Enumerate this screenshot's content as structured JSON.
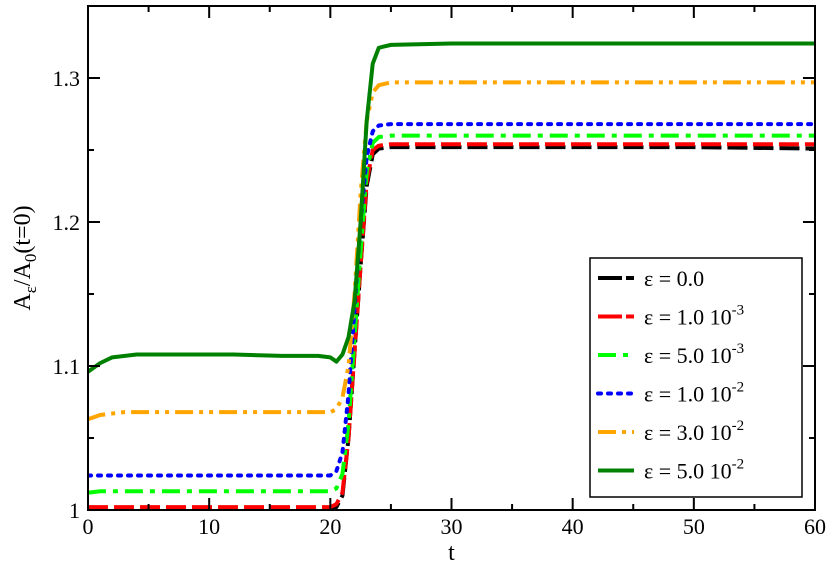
{
  "chart_data": {
    "type": "line",
    "title": "",
    "xlabel": "t",
    "ylabel_main": "A",
    "ylabel_sub": "ε",
    "ylabel_mid": "/A",
    "ylabel_sub2": "0",
    "ylabel_tail": "(t=0)",
    "xlim": [
      0,
      60
    ],
    "ylim": [
      1.0,
      1.35
    ],
    "xticks": [
      0,
      10,
      20,
      30,
      40,
      50,
      60
    ],
    "xtick_labels": [
      "0",
      "10",
      "20",
      "30",
      "40",
      "50",
      "60"
    ],
    "yticks": [
      1.0,
      1.1,
      1.2,
      1.3
    ],
    "ytick_labels": [
      "1",
      "1.1",
      "1.2",
      "1.3"
    ],
    "grid": false,
    "legend_position": "bottom-right",
    "series": [
      {
        "name": "ε = 0.0",
        "label_main": "ε = 0.0",
        "label_exp": "",
        "color": "#000000",
        "style": "dash",
        "points": [
          [
            0,
            1.0
          ],
          [
            5,
            1.0
          ],
          [
            10,
            1.0
          ],
          [
            15,
            1.0
          ],
          [
            19,
            1.0
          ],
          [
            20,
            1.0
          ],
          [
            20.5,
            1.002
          ],
          [
            21,
            1.01
          ],
          [
            21.5,
            1.05
          ],
          [
            22,
            1.11
          ],
          [
            22.5,
            1.17
          ],
          [
            23,
            1.225
          ],
          [
            23.5,
            1.247
          ],
          [
            24,
            1.251
          ],
          [
            25,
            1.252
          ],
          [
            30,
            1.252
          ],
          [
            40,
            1.252
          ],
          [
            50,
            1.252
          ],
          [
            60,
            1.251
          ]
        ]
      },
      {
        "name": "ε = 1.0 10-3",
        "label_main": "ε = 1.0 10",
        "label_exp": "-3",
        "color": "#ff0000",
        "style": "dash",
        "points": [
          [
            0,
            1.002
          ],
          [
            5,
            1.002
          ],
          [
            10,
            1.002
          ],
          [
            15,
            1.002
          ],
          [
            19,
            1.002
          ],
          [
            20,
            1.002
          ],
          [
            20.5,
            1.004
          ],
          [
            21,
            1.012
          ],
          [
            21.5,
            1.05
          ],
          [
            22,
            1.11
          ],
          [
            22.5,
            1.17
          ],
          [
            23,
            1.228
          ],
          [
            23.5,
            1.25
          ],
          [
            24,
            1.253
          ],
          [
            25,
            1.254
          ],
          [
            30,
            1.254
          ],
          [
            40,
            1.254
          ],
          [
            50,
            1.254
          ],
          [
            60,
            1.254
          ]
        ]
      },
      {
        "name": "ε = 5.0 10-3",
        "label_main": "ε = 5.0 10",
        "label_exp": "-3",
        "color": "#00ff00",
        "style": "dashdot",
        "points": [
          [
            0,
            1.012
          ],
          [
            1,
            1.013
          ],
          [
            5,
            1.013
          ],
          [
            10,
            1.013
          ],
          [
            15,
            1.013
          ],
          [
            19,
            1.013
          ],
          [
            20,
            1.013
          ],
          [
            20.5,
            1.015
          ],
          [
            21,
            1.025
          ],
          [
            21.5,
            1.06
          ],
          [
            22,
            1.12
          ],
          [
            22.5,
            1.18
          ],
          [
            23,
            1.235
          ],
          [
            23.5,
            1.255
          ],
          [
            24,
            1.259
          ],
          [
            25,
            1.26
          ],
          [
            30,
            1.26
          ],
          [
            40,
            1.26
          ],
          [
            50,
            1.26
          ],
          [
            60,
            1.26
          ]
        ]
      },
      {
        "name": "ε = 1.0 10-2",
        "label_main": "ε = 1.0 10",
        "label_exp": "-2",
        "color": "#0000ff",
        "style": "dot",
        "points": [
          [
            0,
            1.024
          ],
          [
            1,
            1.024
          ],
          [
            5,
            1.024
          ],
          [
            10,
            1.024
          ],
          [
            15,
            1.024
          ],
          [
            19,
            1.024
          ],
          [
            20,
            1.024
          ],
          [
            20.5,
            1.027
          ],
          [
            21,
            1.04
          ],
          [
            21.5,
            1.08
          ],
          [
            22,
            1.14
          ],
          [
            22.5,
            1.2
          ],
          [
            23,
            1.245
          ],
          [
            23.5,
            1.263
          ],
          [
            24,
            1.267
          ],
          [
            25,
            1.268
          ],
          [
            30,
            1.268
          ],
          [
            40,
            1.268
          ],
          [
            50,
            1.268
          ],
          [
            60,
            1.268
          ]
        ]
      },
      {
        "name": "ε = 3.0 10-2",
        "label_main": "ε = 3.0 10",
        "label_exp": "-2",
        "color": "#ffa500",
        "style": "dashdotdot",
        "points": [
          [
            0,
            1.063
          ],
          [
            1,
            1.066
          ],
          [
            3,
            1.068
          ],
          [
            5,
            1.068
          ],
          [
            10,
            1.068
          ],
          [
            15,
            1.068
          ],
          [
            19,
            1.068
          ],
          [
            20,
            1.068
          ],
          [
            20.5,
            1.07
          ],
          [
            21,
            1.078
          ],
          [
            21.5,
            1.1
          ],
          [
            22,
            1.15
          ],
          [
            22.5,
            1.22
          ],
          [
            23,
            1.27
          ],
          [
            23.5,
            1.29
          ],
          [
            24,
            1.295
          ],
          [
            25,
            1.297
          ],
          [
            30,
            1.297
          ],
          [
            40,
            1.297
          ],
          [
            50,
            1.297
          ],
          [
            60,
            1.297
          ]
        ]
      },
      {
        "name": "ε = 5.0 10-2",
        "label_main": "ε = 5.0 10",
        "label_exp": "-2",
        "color": "#008000",
        "style": "solid",
        "points": [
          [
            0,
            1.096
          ],
          [
            1,
            1.102
          ],
          [
            2,
            1.106
          ],
          [
            4,
            1.108
          ],
          [
            8,
            1.108
          ],
          [
            12,
            1.108
          ],
          [
            16,
            1.107
          ],
          [
            19,
            1.107
          ],
          [
            20,
            1.106
          ],
          [
            20.5,
            1.103
          ],
          [
            21,
            1.108
          ],
          [
            21.5,
            1.12
          ],
          [
            22,
            1.145
          ],
          [
            22.5,
            1.2
          ],
          [
            23,
            1.27
          ],
          [
            23.5,
            1.31
          ],
          [
            24,
            1.321
          ],
          [
            25,
            1.323
          ],
          [
            30,
            1.324
          ],
          [
            40,
            1.324
          ],
          [
            50,
            1.324
          ],
          [
            60,
            1.324
          ]
        ]
      }
    ]
  }
}
